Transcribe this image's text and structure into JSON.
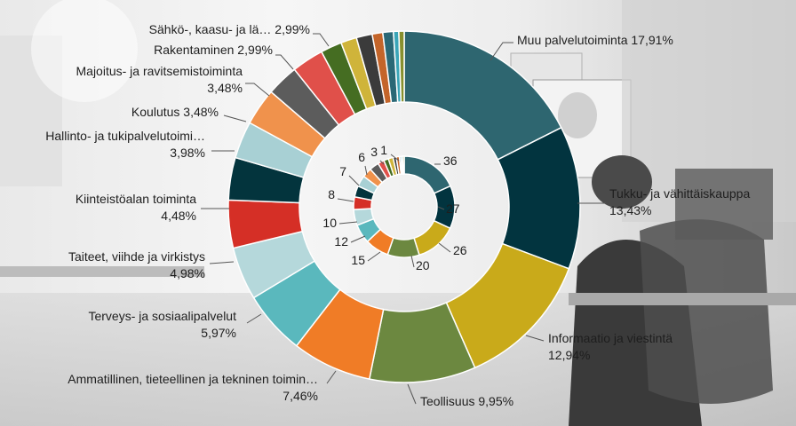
{
  "chart_data": {
    "type": "donut",
    "categories": [
      "Muu palvelutoiminta",
      "Tukku- ja vähittäiskauppa",
      "Informaatio ja viestintä",
      "Teollisuus",
      "Ammatillinen, tieteellinen ja tekninen toimin…",
      "Terveys- ja sosiaalipalvelut",
      "Taiteet, viihde ja virkistys",
      "Kiinteistöalan toiminta",
      "Hallinto- ja tukipalvelutoimi…",
      "Koulutus",
      "Majoitus- ja ravitsemistoiminta",
      "Rakentaminen",
      "Sähkö-, kaasu- ja lä…",
      "",
      "",
      "",
      "",
      "",
      "",
      ""
    ],
    "outer_series": {
      "values": [
        17.91,
        13.43,
        12.94,
        9.95,
        7.46,
        5.97,
        4.98,
        4.48,
        3.98,
        3.48,
        3.48,
        2.99,
        2.99,
        1.99,
        1.49,
        1.49,
        0.99,
        0.99,
        0.5,
        0.5
      ],
      "value_labels": [
        "17,91%",
        "13,43%",
        "12,94%",
        "9,95%",
        "7,46%",
        "5,97%",
        "4,98%",
        "4,48%",
        "3,98%",
        "3,48%",
        "3,48%",
        "2,99%",
        "2,99%",
        "",
        "",
        "",
        "",
        "",
        "",
        ""
      ]
    },
    "inner_series": {
      "values": [
        36,
        27,
        26,
        20,
        15,
        12,
        10,
        8,
        7,
        7,
        6,
        6,
        4,
        3,
        3,
        2,
        2,
        1,
        1,
        1
      ],
      "value_labels": [
        "36",
        "27",
        "26",
        "20",
        "15",
        "12",
        "10",
        "8",
        "7",
        "",
        "6",
        "",
        "",
        "3",
        "",
        "",
        "",
        "1",
        "",
        ""
      ]
    },
    "colors": [
      "#2e6670",
      "#02343f",
      "#c9aa1a",
      "#6c8840",
      "#f07c26",
      "#5ab8bd",
      "#b5d8db",
      "#d52f26",
      "#03343d",
      "#a8d0d4",
      "#f0924c",
      "#5c5c5c",
      "#e0504a",
      "#456d22",
      "#cfb43a",
      "#3b3b3b",
      "#c4652a",
      "#2a6876",
      "#3aa5b8",
      "#88902e"
    ],
    "title": "",
    "legend": "none"
  },
  "background": {
    "colors": {
      "light": "#f1f1f1",
      "mid": "#cfcfcf",
      "dark": "#2b2b2b",
      "panel": "#fbfbfb"
    }
  }
}
